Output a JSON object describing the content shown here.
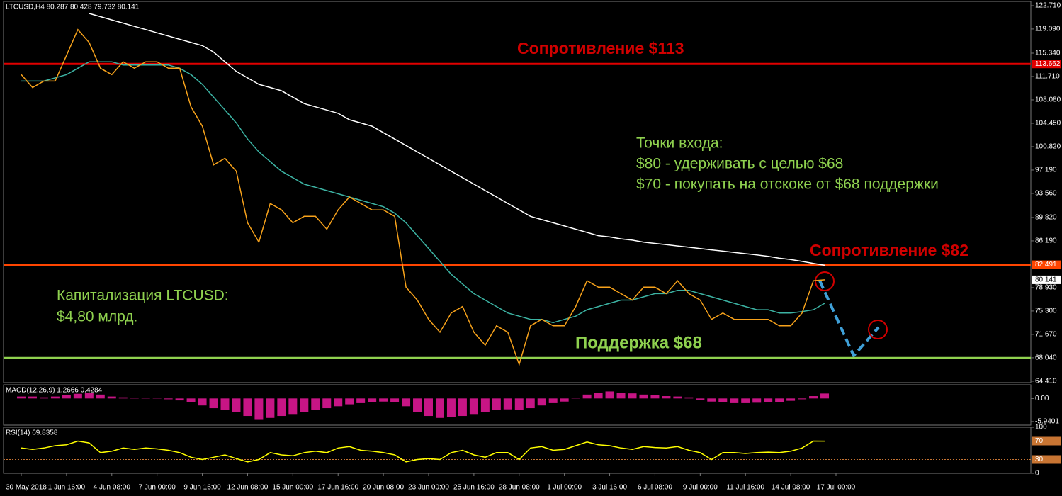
{
  "chart_data": [
    {
      "type": "line",
      "title": "LTCUSD,H4  80.287 80.428 79.732 80.141",
      "categories": [
        "30 May 2018",
        null,
        null,
        null,
        "1 Jun 16:00",
        null,
        null,
        null,
        "4 Jun 08:00",
        null,
        null,
        null,
        "7 Jun 00:00",
        null,
        null,
        null,
        "9 Jun 16:00",
        null,
        null,
        null,
        "12 Jun 08:00",
        null,
        null,
        null,
        "15 Jun 00:00",
        null,
        null,
        null,
        "17 Jun 16:00",
        null,
        null,
        null,
        "20 Jun 08:00",
        null,
        null,
        null,
        "23 Jun 00:00",
        null,
        null,
        null,
        "25 Jun 16:00",
        null,
        null,
        null,
        "28 Jun 08:00",
        null,
        null,
        null,
        "1 Jul 00:00",
        null,
        null,
        null,
        "3 Jul 16:00",
        null,
        null,
        null,
        "6 Jul 08:00",
        null,
        null,
        null,
        "9 Jul 00:00",
        null,
        null,
        null,
        "11 Jul 16:00",
        null,
        null,
        null,
        "14 Jul 08:00",
        null,
        null,
        null,
        "17 Jul 00:00"
      ],
      "series": [
        {
          "color": "#ffffff",
          "values": [
            null,
            null,
            null,
            null,
            null,
            null,
            121.5,
            121,
            120.5,
            120,
            119.5,
            119,
            118.5,
            118,
            117.5,
            117,
            116.5,
            115.5,
            114,
            112.5,
            111.5,
            110.5,
            110,
            109.5,
            108.5,
            107.5,
            107,
            106.5,
            106,
            105,
            104.5,
            104,
            103,
            102,
            101,
            100,
            99,
            98,
            97,
            96,
            95,
            94,
            93,
            92,
            91,
            90,
            89.5,
            89,
            88.5,
            88,
            87.5,
            87,
            86.8,
            86.5,
            86.3,
            86,
            85.8,
            85.6,
            85.4,
            85.2,
            85,
            84.8,
            84.6,
            84.4,
            84.2,
            84,
            83.8,
            83.5,
            83.3,
            83,
            82.7,
            82.4,
            null
          ]
        },
        {
          "color": "#3cb3a3",
          "values": [
            111,
            111,
            111,
            111.5,
            112,
            113,
            114,
            114,
            114,
            113.5,
            113.5,
            113.5,
            113.5,
            113.5,
            113,
            112,
            110.5,
            108.5,
            106.5,
            104.5,
            102,
            100,
            98.5,
            97,
            96,
            95,
            94.5,
            94,
            93.5,
            93,
            92.5,
            92,
            91.5,
            90.5,
            89,
            87,
            85,
            83,
            81,
            79.5,
            78,
            77,
            76,
            75,
            74.5,
            74,
            74,
            73.5,
            74,
            74.5,
            75.5,
            76,
            76.5,
            77,
            77,
            77.5,
            78,
            78,
            78.5,
            78.5,
            78,
            77.5,
            77,
            76.5,
            76,
            75.5,
            75.5,
            75,
            75,
            75.2,
            75.5,
            76.5,
            null
          ]
        },
        {
          "color": "#f7a21b",
          "values": [
            112,
            110,
            111,
            111,
            115,
            119,
            117,
            113,
            112,
            114,
            113,
            114,
            114,
            113,
            113,
            107,
            104,
            98,
            99,
            97,
            89,
            86,
            92,
            91,
            89,
            90,
            90,
            88,
            91,
            93,
            92,
            91,
            91,
            90,
            79,
            77,
            74,
            72,
            75,
            76,
            72,
            70,
            73,
            72,
            67,
            73,
            74,
            73,
            73,
            76,
            80,
            79,
            79,
            78,
            77,
            79,
            79,
            78,
            80,
            78,
            77,
            74,
            75,
            74,
            74,
            74,
            74,
            73,
            73,
            75,
            80,
            80.141,
            null
          ]
        }
      ],
      "ylim": [
        64.18,
        123.37
      ],
      "yticks": [
        {
          "value": 122.71,
          "label": "122.710"
        },
        {
          "value": 119.09,
          "label": "119.090"
        },
        {
          "value": 115.34,
          "label": "115.340"
        },
        {
          "value": 111.71,
          "label": "111.710"
        },
        {
          "value": 108.08,
          "label": "108.080"
        },
        {
          "value": 104.45,
          "label": "104.450"
        },
        {
          "value": 100.82,
          "label": "100.820"
        },
        {
          "value": 97.19,
          "label": "97.190"
        },
        {
          "value": 93.56,
          "label": "93.560"
        },
        {
          "value": 89.82,
          "label": "89.820"
        },
        {
          "value": 86.19,
          "label": "86.190"
        },
        {
          "value": 78.93,
          "label": "78.930"
        },
        {
          "value": 75.3,
          "label": "75.300"
        },
        {
          "value": 71.67,
          "label": "71.670"
        },
        {
          "value": 68.04,
          "label": "68.040"
        },
        {
          "value": 64.41,
          "label": "64.410"
        }
      ],
      "levels": [
        {
          "value": 113.662,
          "label": "113.662",
          "color": "#e00000"
        },
        {
          "value": 82.491,
          "label": "82.491",
          "color": "#ff4500"
        },
        {
          "value": 68,
          "color": "#8fd14f"
        }
      ],
      "last_price": {
        "value": 80.141,
        "label": "80.141"
      },
      "annotations": [
        "Сопротивление $113",
        "Сопротивление $82",
        "Точки входа:",
        "$80 - удерживать с целью $68",
        "$70 - покупать на отскоке от $68 поддержки",
        "Капитализация LTCUSD:",
        "$4,80 млрд.",
        "Поддержка $68"
      ]
    },
    {
      "type": "bar",
      "title": "MACD(12,26,9) 1.2666 0.4284",
      "color": "#c71585",
      "values": [
        0.5,
        0.5,
        0.3,
        0.5,
        0.8,
        1.2,
        1.5,
        1.0,
        0.5,
        0.3,
        0.2,
        0.2,
        0.1,
        -0.2,
        -0.5,
        -1.0,
        -1.8,
        -2.5,
        -3.0,
        -3.5,
        -4.5,
        -5.5,
        -5.0,
        -4.5,
        -4.0,
        -3.5,
        -3.0,
        -2.5,
        -2.0,
        -1.5,
        -1.2,
        -1.0,
        -0.8,
        -1.0,
        -2.0,
        -3.5,
        -4.5,
        -5.0,
        -4.8,
        -4.5,
        -4.0,
        -3.5,
        -3.0,
        -2.8,
        -3.0,
        -2.5,
        -1.8,
        -1.2,
        -0.8,
        0.2,
        1.0,
        1.5,
        1.8,
        1.5,
        1.3,
        1.0,
        0.8,
        0.6,
        0.5,
        0.3,
        -0.3,
        -0.8,
        -1.0,
        -1.2,
        -1.2,
        -1.1,
        -1.0,
        -0.9,
        -0.6,
        -0.2,
        0.6,
        1.2666,
        null
      ],
      "ylim": [
        -6.86,
        3.52
      ],
      "yticks": [
        {
          "value": 0,
          "label": "0.00"
        },
        -5.9401
      ]
    },
    {
      "type": "line",
      "title": "RSI(14) 69.8358",
      "series": [
        {
          "color": "#ffff00",
          "values": [
            55,
            52,
            55,
            60,
            62,
            70,
            66,
            45,
            48,
            55,
            52,
            55,
            53,
            50,
            45,
            35,
            30,
            35,
            40,
            32,
            25,
            30,
            45,
            40,
            38,
            45,
            48,
            45,
            55,
            58,
            50,
            48,
            45,
            40,
            25,
            30,
            32,
            30,
            45,
            50,
            40,
            35,
            45,
            45,
            30,
            55,
            58,
            50,
            52,
            60,
            68,
            62,
            60,
            55,
            52,
            58,
            56,
            55,
            58,
            50,
            45,
            30,
            45,
            45,
            43,
            45,
            46,
            45,
            48,
            55,
            70,
            69.8358,
            null
          ]
        }
      ],
      "ylim": [
        0,
        100
      ],
      "yticks": [
        100,
        0
      ],
      "levels": [
        {
          "value": 70,
          "label": "70",
          "color": "#c87533"
        },
        {
          "value": 30,
          "label": "30",
          "color": "#c87533"
        }
      ]
    }
  ]
}
